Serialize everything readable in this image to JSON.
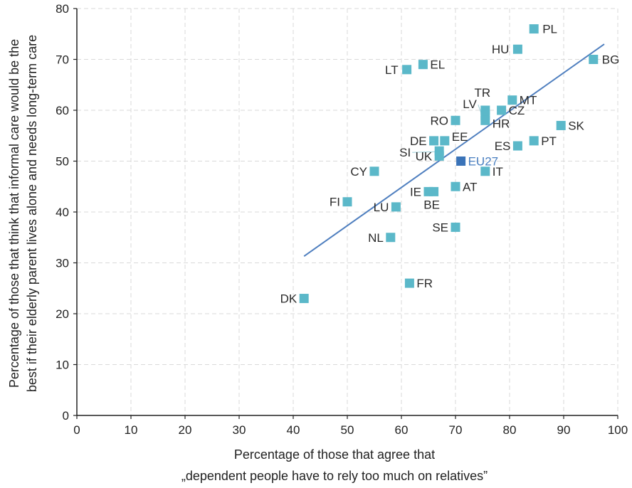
{
  "chart_data": {
    "type": "scatter",
    "xlabel_line1": "Percentage of those that agree that",
    "xlabel_line2": "„dependent people have to rely too much on relatives”",
    "ylabel_line1": "Percentage of those that think that informal care would be the",
    "ylabel_line2": "best if their elderly parent lives alone and needs long-term care",
    "xlim": [
      0,
      100
    ],
    "ylim": [
      0,
      80
    ],
    "xticks": [
      0,
      10,
      20,
      30,
      40,
      50,
      60,
      70,
      80,
      90,
      100
    ],
    "yticks": [
      0,
      10,
      20,
      30,
      40,
      50,
      60,
      70,
      80
    ],
    "grid": "dashed",
    "colors": {
      "marker": "#5bb8c9",
      "highlight": "#3a73b8",
      "trend": "#4f7fbf",
      "grid": "#d9d9d9",
      "axis": "#222222"
    },
    "trendline": {
      "x": [
        42,
        97.5
      ],
      "y": [
        31.3,
        73
      ]
    },
    "points": [
      {
        "label": "PL",
        "x": 84.5,
        "y": 76
      },
      {
        "label": "HU",
        "x": 81.5,
        "y": 72
      },
      {
        "label": "BG",
        "x": 95.5,
        "y": 70
      },
      {
        "label": "LT",
        "x": 61,
        "y": 68
      },
      {
        "label": "EL",
        "x": 64,
        "y": 69
      },
      {
        "label": "TR",
        "x": 75.5,
        "y": 60
      },
      {
        "label": "MT",
        "x": 80.5,
        "y": 62
      },
      {
        "label": "LV",
        "x": 75.5,
        "y": 59
      },
      {
        "label": "CZ",
        "x": 78.5,
        "y": 60
      },
      {
        "label": "RO",
        "x": 70,
        "y": 58
      },
      {
        "label": "HR",
        "x": 75.5,
        "y": 58
      },
      {
        "label": "SK",
        "x": 89.5,
        "y": 57
      },
      {
        "label": "DE",
        "x": 66,
        "y": 54
      },
      {
        "label": "EE",
        "x": 68,
        "y": 54
      },
      {
        "label": "PT",
        "x": 84.5,
        "y": 54
      },
      {
        "label": "ES",
        "x": 81.5,
        "y": 53
      },
      {
        "label": "SI",
        "x": 67,
        "y": 52
      },
      {
        "label": "UK",
        "x": 67,
        "y": 51
      },
      {
        "label": "EU27",
        "x": 71,
        "y": 50,
        "highlight": true
      },
      {
        "label": "CY",
        "x": 55,
        "y": 48
      },
      {
        "label": "IT",
        "x": 75.5,
        "y": 48
      },
      {
        "label": "IE",
        "x": 65,
        "y": 44
      },
      {
        "label": "BE",
        "x": 66,
        "y": 44
      },
      {
        "label": "AT",
        "x": 70,
        "y": 45
      },
      {
        "label": "FI",
        "x": 50,
        "y": 42
      },
      {
        "label": "LU",
        "x": 59,
        "y": 41
      },
      {
        "label": "SE",
        "x": 70,
        "y": 37
      },
      {
        "label": "NL",
        "x": 58,
        "y": 35
      },
      {
        "label": "FR",
        "x": 61.5,
        "y": 26
      },
      {
        "label": "DK",
        "x": 42,
        "y": 23
      }
    ]
  }
}
